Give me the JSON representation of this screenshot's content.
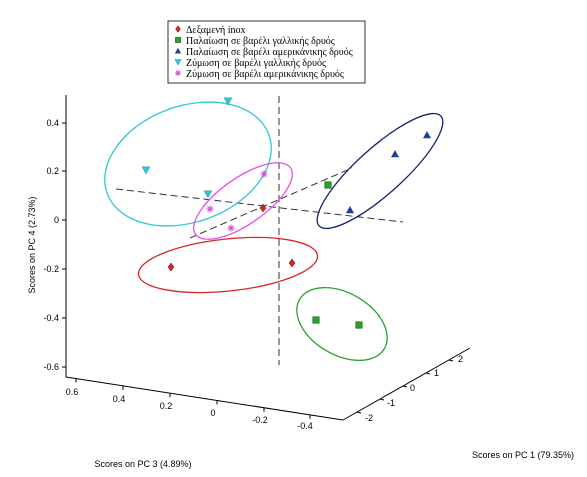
{
  "chart_data": {
    "type": "scatter",
    "dimensions": 3,
    "title": "",
    "axes": {
      "pc1": {
        "label": "Scores on PC 1 (79.35%)",
        "ticks": [
          "-2",
          "-1",
          "0",
          "1",
          "2"
        ]
      },
      "pc3": {
        "label": "Scores on PC 3 (4.89%)",
        "ticks": [
          "0.6",
          "0.4",
          "0.2",
          "0",
          "-0.2",
          "-0.4"
        ]
      },
      "pc4": {
        "label": "Scores on PC 4 (2.73%)",
        "ticks": [
          "0.4",
          "0.2",
          "0",
          "-0.2",
          "-0.4",
          "-0.6"
        ]
      }
    },
    "legend": {
      "placement": "top-center",
      "entries": [
        {
          "name": "Δεξαμενή inox",
          "marker": "diamond",
          "color": "#d62728"
        },
        {
          "name": "Παλαίωση σε βαρέλι γαλλικής δρυός",
          "marker": "square",
          "color": "#2ca02c"
        },
        {
          "name": "Παλαίωση σε βαρέλι αμερικάνικης δρυός",
          "marker": "triangle-up",
          "color": "#1f3d99"
        },
        {
          "name": "Ζύμωση σε βαρέλι γαλλικής δρυός",
          "marker": "triangle-down",
          "color": "#2ec7d6"
        },
        {
          "name": "Ζύμωση σε βαρέλι αμερικάνικης δρυός",
          "marker": "star",
          "color": "#d64fd6"
        }
      ]
    },
    "series": [
      {
        "name": "Δεξαμενή inox",
        "points": [
          {
            "pc4": -0.19
          },
          {
            "pc4": -0.17
          },
          {
            "pc4": 0.05
          }
        ]
      },
      {
        "name": "Παλαίωση σε βαρέλι γαλλικής δρυός",
        "points": [
          {
            "pc4": -0.41
          },
          {
            "pc4": -0.43
          },
          {
            "pc4": 0.14
          }
        ]
      },
      {
        "name": "Παλαίωση σε βαρέλι αμερικάνικης δρυός",
        "points": [
          {
            "pc4": 0.35
          },
          {
            "pc4": 0.27
          },
          {
            "pc4": 0.04
          }
        ]
      },
      {
        "name": "Ζύμωση σε βαρέλι γαλλικής δρυός",
        "points": [
          {
            "pc4": 0.49
          },
          {
            "pc4": 0.2
          },
          {
            "pc4": 0.11
          }
        ]
      },
      {
        "name": "Ζύμωση σε βαρέλι αμερικάνικης δρυός",
        "points": [
          {
            "pc4": 0.19
          },
          {
            "pc4": 0.05
          },
          {
            "pc4": -0.03
          }
        ]
      }
    ],
    "confidence_ellipses": true,
    "origin_axes_dashed": true,
    "grid": false
  }
}
